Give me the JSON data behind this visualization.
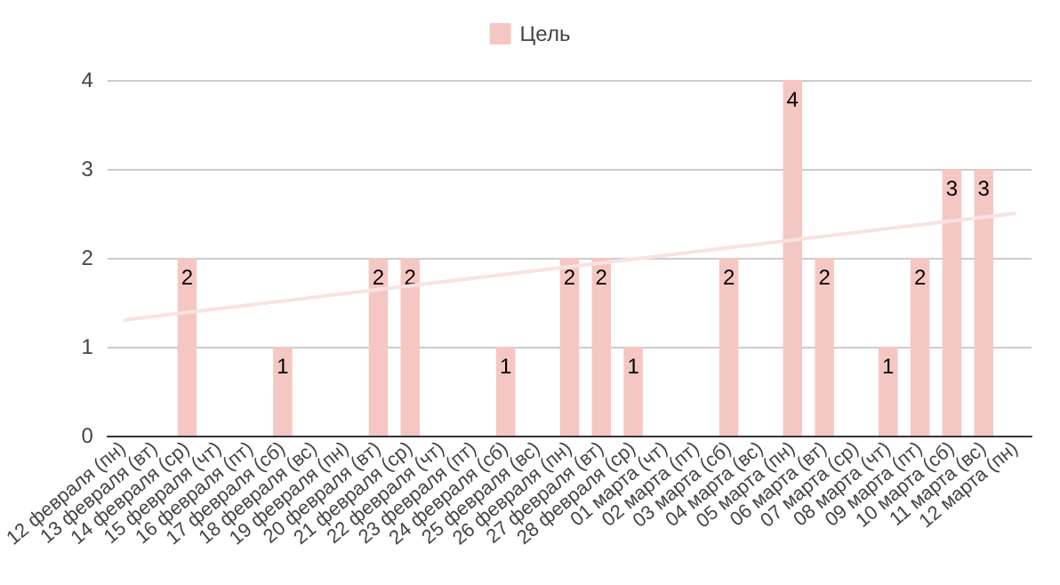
{
  "chart_data": {
    "type": "bar",
    "categories": [
      "12 февраля (пн)",
      "13 февраля (вт)",
      "14 февраля (ср)",
      "15 февраля (чт)",
      "16 февраля (пт)",
      "17 февраля (сб)",
      "18 февраля (вс)",
      "19 февраля (пн)",
      "20 февраля (вт)",
      "21 февраля (ср)",
      "22 февраля (чт)",
      "23 февраля (пт)",
      "24 февраля (сб)",
      "25 февраля (вс)",
      "26 февраля (пн)",
      "27 февраля (вт)",
      "28 февраля (ср)",
      "01 марта (чт)",
      "02 марта (пт)",
      "03 марта (сб)",
      "04 марта (вс)",
      "05 марта (пн)",
      "06 марта (вт)",
      "07 марта (ср)",
      "08 марта (чт)",
      "09 марта (пт)",
      "10 марта (сб)",
      "11 марта (вс)",
      "12 марта (пн)"
    ],
    "series": [
      {
        "name": "Цель",
        "color": "#f4c7c3",
        "values": [
          null,
          null,
          2,
          null,
          null,
          1,
          null,
          null,
          2,
          2,
          null,
          null,
          1,
          null,
          2,
          2,
          1,
          null,
          null,
          2,
          null,
          4,
          2,
          null,
          1,
          2,
          3,
          3,
          null
        ],
        "value_labels": [
          null,
          null,
          "2",
          null,
          null,
          "1",
          null,
          null,
          "2",
          "2",
          null,
          null,
          "1",
          null,
          "2",
          "2",
          "1",
          null,
          null,
          "2",
          null,
          "4",
          "2",
          null,
          "1",
          "2",
          "3",
          "3",
          null
        ]
      },
      {
        "type": "line",
        "color": "#f9e2e0",
        "x": [
          "12 февраля (пн)",
          "12 марта (пн)"
        ],
        "values": [
          1.3,
          2.5
        ]
      }
    ],
    "ylim": [
      0,
      4
    ],
    "yticks": [
      0,
      1,
      2,
      3,
      4
    ],
    "grid": "y",
    "legend": "top",
    "marker": "none"
  }
}
